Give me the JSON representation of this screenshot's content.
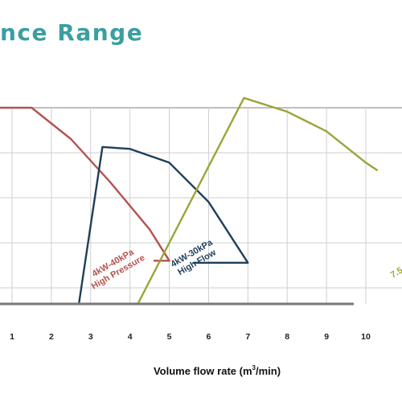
{
  "page": {
    "title": "nce Range"
  },
  "chart_data": {
    "type": "line",
    "xlabel": "Volume flow rate (m",
    "xlabel_sup": "3",
    "xlabel_tail": "/min)",
    "x_ticks": [
      "1",
      "2",
      "3",
      "4",
      "5",
      "6",
      "7",
      "8",
      "9",
      "10"
    ],
    "xlim": [
      0,
      10.3
    ],
    "ylim": [
      0,
      1
    ],
    "grid": true,
    "colors": {
      "red": "#b5534f",
      "navy": "#1f3e5a",
      "olive": "#9ca437",
      "axis": "#777777",
      "grid": "#cfcfcf",
      "title": "#3a9fa1"
    },
    "series": [
      {
        "name": "4kW-40kPa High Pressure",
        "name_line1": "4kW-40kPa",
        "name_line2": "High Pressure",
        "color": "red",
        "points": [
          [
            0,
            0.3
          ],
          [
            0.55,
            1.0
          ],
          [
            1.5,
            1.0
          ],
          [
            2.5,
            0.84
          ],
          [
            3.5,
            0.62
          ],
          [
            4.5,
            0.38
          ],
          [
            5.0,
            0.22
          ],
          [
            4.6,
            0.22
          ]
        ]
      },
      {
        "name": "4kW-30kPa High Flow",
        "name_line1": "4kW-30kPa",
        "name_line2": "High Flow",
        "color": "navy",
        "points": [
          [
            0.0,
            0.0
          ],
          [
            2.7,
            0.0
          ],
          [
            3.3,
            0.8
          ],
          [
            4.0,
            0.79
          ],
          [
            5.0,
            0.72
          ],
          [
            6.0,
            0.52
          ],
          [
            7.0,
            0.21
          ],
          [
            5.6,
            0.21
          ]
        ]
      },
      {
        "name": "7.5",
        "name_line1": "7.5",
        "name_line2": "",
        "color": "olive",
        "points": [
          [
            2.9,
            0.0
          ],
          [
            4.2,
            0.0
          ],
          [
            6.9,
            1.05
          ],
          [
            8.0,
            0.98
          ],
          [
            9.0,
            0.88
          ],
          [
            10.0,
            0.72
          ],
          [
            10.3,
            0.68
          ]
        ]
      }
    ]
  }
}
